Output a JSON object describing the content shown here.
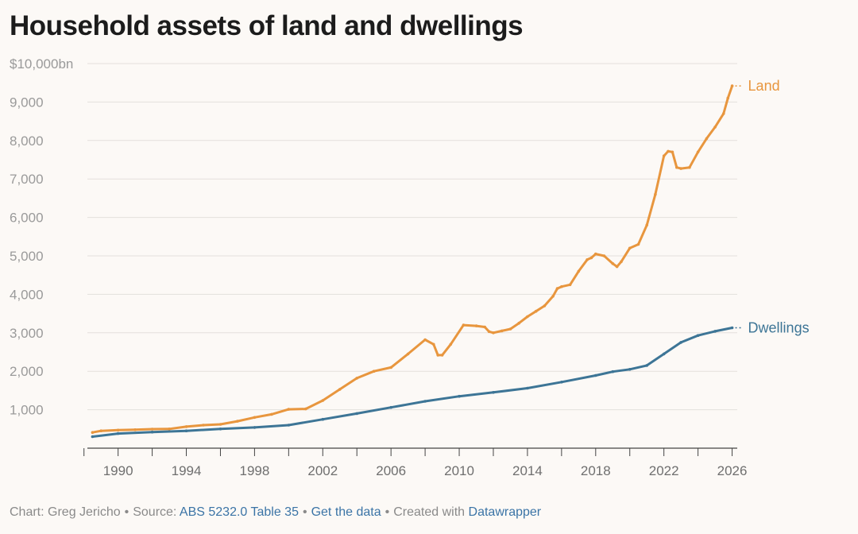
{
  "title": "Household assets of land and dwellings",
  "footer": {
    "chart_by": "Chart: Greg Jericho",
    "source_prefix": "Source:",
    "source_link": "ABS 5232.0 Table 35",
    "data_link": "Get the data",
    "created_prefix": "Created with",
    "created_link": "Datawrapper"
  },
  "colors": {
    "land": "#e8963e",
    "dwellings": "#3d7596",
    "grid": "#e3e0dc",
    "axis": "#444444"
  },
  "chart_data": {
    "type": "line",
    "title": "Household assets of land and dwellings",
    "ylim": [
      0,
      10000
    ],
    "xlim": [
      1988.2,
      2026.3
    ],
    "y_ticks": [
      1000,
      2000,
      3000,
      4000,
      5000,
      6000,
      7000,
      8000,
      9000,
      10000
    ],
    "y_tick_labels": [
      "1,000",
      "2,000",
      "3,000",
      "4,000",
      "5,000",
      "6,000",
      "7,000",
      "8,000",
      "9,000",
      "$10,000bn"
    ],
    "x_ticks": [
      1990,
      1994,
      1998,
      2002,
      2006,
      2010,
      2014,
      2018,
      2022,
      2026
    ],
    "x_tick_labels": [
      "1990",
      "1994",
      "1998",
      "2002",
      "2006",
      "2010",
      "2014",
      "2018",
      "2022",
      "2026"
    ],
    "grid": true,
    "legend": "inline labels at line ends",
    "series": [
      {
        "name": "Land",
        "points": [
          [
            1988.5,
            410
          ],
          [
            1989.0,
            450
          ],
          [
            1990.0,
            470
          ],
          [
            1991.0,
            480
          ],
          [
            1992.0,
            495
          ],
          [
            1993.0,
            500
          ],
          [
            1994.0,
            560
          ],
          [
            1995.0,
            600
          ],
          [
            1996.0,
            620
          ],
          [
            1997.0,
            700
          ],
          [
            1998.0,
            800
          ],
          [
            1999.0,
            880
          ],
          [
            2000.0,
            1010
          ],
          [
            2001.0,
            1020
          ],
          [
            2002.0,
            1240
          ],
          [
            2003.0,
            1530
          ],
          [
            2004.0,
            1820
          ],
          [
            2005.0,
            2000
          ],
          [
            2006.0,
            2100
          ],
          [
            2007.0,
            2450
          ],
          [
            2008.0,
            2820
          ],
          [
            2008.5,
            2700
          ],
          [
            2008.75,
            2420
          ],
          [
            2009.0,
            2420
          ],
          [
            2009.5,
            2700
          ],
          [
            2010.25,
            3200
          ],
          [
            2011.0,
            3180
          ],
          [
            2011.5,
            3150
          ],
          [
            2011.75,
            3030
          ],
          [
            2012.0,
            3000
          ],
          [
            2012.5,
            3050
          ],
          [
            2013.0,
            3100
          ],
          [
            2013.5,
            3250
          ],
          [
            2014.0,
            3420
          ],
          [
            2014.5,
            3560
          ],
          [
            2015.0,
            3700
          ],
          [
            2015.5,
            3950
          ],
          [
            2015.75,
            4150
          ],
          [
            2016.0,
            4200
          ],
          [
            2016.5,
            4250
          ],
          [
            2017.0,
            4600
          ],
          [
            2017.5,
            4900
          ],
          [
            2017.75,
            4950
          ],
          [
            2018.0,
            5050
          ],
          [
            2018.5,
            5000
          ],
          [
            2019.0,
            4800
          ],
          [
            2019.25,
            4720
          ],
          [
            2019.5,
            4850
          ],
          [
            2020.0,
            5200
          ],
          [
            2020.5,
            5300
          ],
          [
            2021.0,
            5800
          ],
          [
            2021.5,
            6600
          ],
          [
            2022.0,
            7600
          ],
          [
            2022.25,
            7720
          ],
          [
            2022.5,
            7700
          ],
          [
            2022.75,
            7300
          ],
          [
            2023.0,
            7270
          ],
          [
            2023.5,
            7300
          ],
          [
            2024.0,
            7700
          ],
          [
            2024.5,
            8050
          ],
          [
            2025.0,
            8350
          ],
          [
            2025.5,
            8700
          ],
          [
            2025.75,
            9100
          ],
          [
            2026.0,
            9420
          ]
        ]
      },
      {
        "name": "Dwellings",
        "points": [
          [
            1988.5,
            300
          ],
          [
            1990.0,
            380
          ],
          [
            1992.0,
            420
          ],
          [
            1994.0,
            450
          ],
          [
            1996.0,
            500
          ],
          [
            1998.0,
            540
          ],
          [
            2000.0,
            600
          ],
          [
            2002.0,
            750
          ],
          [
            2004.0,
            900
          ],
          [
            2006.0,
            1060
          ],
          [
            2008.0,
            1220
          ],
          [
            2010.0,
            1350
          ],
          [
            2012.0,
            1450
          ],
          [
            2014.0,
            1560
          ],
          [
            2016.0,
            1720
          ],
          [
            2018.0,
            1890
          ],
          [
            2019.0,
            1990
          ],
          [
            2020.0,
            2050
          ],
          [
            2021.0,
            2150
          ],
          [
            2022.0,
            2450
          ],
          [
            2023.0,
            2750
          ],
          [
            2024.0,
            2930
          ],
          [
            2025.0,
            3040
          ],
          [
            2026.0,
            3130
          ]
        ]
      }
    ]
  }
}
